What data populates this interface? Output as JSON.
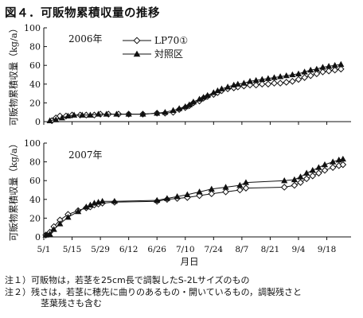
{
  "figure_title": "図４．可販物累積収量の推移",
  "x_axis_label": "月日",
  "notes": [
    "注１）可販物は，若茎を25cm長で調製したS-2Lサイズのもの",
    "注２）残さは，若茎に穂先に曲りのあるもの・開いているもの，調製残さと",
    "茎葉残さも含む"
  ],
  "chart_data": [
    {
      "type": "line",
      "title": "2006年",
      "ylabel": "可販物累積収量（kg/a）",
      "xlabel": "",
      "ylim": [
        0,
        100
      ],
      "yticks": [
        0,
        20,
        40,
        60,
        80,
        100
      ],
      "xlim": [
        "5/1",
        "9/30"
      ],
      "xticks": [
        "5/1",
        "5/15",
        "5/29",
        "6/12",
        "6/26",
        "7/10",
        "7/24",
        "8/7",
        "8/21",
        "9/4",
        "9/18"
      ],
      "grid": false,
      "legend": "top-right",
      "series": [
        {
          "name": "LP70①",
          "marker": "open-diamond",
          "x": [
            "5/5",
            "5/7",
            "5/9",
            "5/12",
            "5/15",
            "5/19",
            "5/22",
            "5/26",
            "5/29",
            "6/2",
            "6/7",
            "6/12",
            "6/19",
            "6/26",
            "6/30",
            "7/4",
            "7/7",
            "7/10",
            "7/12",
            "7/14",
            "7/17",
            "7/19",
            "7/21",
            "7/24",
            "7/26",
            "7/28",
            "7/31",
            "8/3",
            "8/5",
            "8/8",
            "8/11",
            "8/14",
            "8/17",
            "8/20",
            "8/23",
            "8/26",
            "8/29",
            "9/1",
            "9/4",
            "9/7",
            "9/10",
            "9/13",
            "9/16",
            "9/19",
            "9/22",
            "9/25"
          ],
          "values": [
            1,
            4,
            6,
            6,
            7,
            7,
            7,
            7,
            8,
            8,
            8,
            8,
            8,
            9,
            9,
            10,
            13,
            15,
            17,
            20,
            22,
            25,
            27,
            29,
            31,
            33,
            35,
            36,
            37,
            38,
            39,
            39,
            40,
            40,
            41,
            41,
            42,
            43,
            45,
            47,
            49,
            51,
            53,
            54,
            55,
            56
          ]
        },
        {
          "name": "対照区",
          "marker": "filled-triangle",
          "x": [
            "5/4",
            "5/7",
            "5/10",
            "5/13",
            "5/16",
            "5/20",
            "5/24",
            "5/28",
            "6/1",
            "6/6",
            "6/12",
            "6/19",
            "6/26",
            "6/30",
            "7/4",
            "7/7",
            "7/10",
            "7/12",
            "7/14",
            "7/17",
            "7/19",
            "7/21",
            "7/24",
            "7/26",
            "7/28",
            "7/31",
            "8/3",
            "8/5",
            "8/8",
            "8/11",
            "8/14",
            "8/17",
            "8/20",
            "8/23",
            "8/26",
            "8/29",
            "9/1",
            "9/4",
            "9/7",
            "9/10",
            "9/13",
            "9/16",
            "9/19",
            "9/22",
            "9/25"
          ],
          "values": [
            1,
            2,
            4,
            6,
            7,
            7,
            7,
            8,
            8,
            8,
            8,
            8,
            9,
            10,
            12,
            14,
            16,
            18,
            21,
            24,
            26,
            28,
            31,
            33,
            35,
            37,
            39,
            40,
            41,
            43,
            44,
            45,
            46,
            47,
            48,
            49,
            50,
            51,
            53,
            55,
            56,
            58,
            59,
            60,
            61
          ]
        }
      ]
    },
    {
      "type": "line",
      "title": "2007年",
      "ylabel": "可販物累積収量（kg/a）",
      "xlabel": "月日",
      "ylim": [
        0,
        100
      ],
      "yticks": [
        0,
        20,
        40,
        60,
        80,
        100
      ],
      "xlim": [
        "5/1",
        "9/30"
      ],
      "xticks": [
        "5/1",
        "5/15",
        "5/29",
        "6/12",
        "6/26",
        "7/10",
        "7/24",
        "8/7",
        "8/21",
        "9/4",
        "9/18"
      ],
      "grid": false,
      "series": [
        {
          "name": "LP70①",
          "marker": "open-diamond",
          "x": [
            "5/2",
            "5/4",
            "5/6",
            "5/9",
            "5/13",
            "5/18",
            "5/22",
            "5/24",
            "5/26",
            "5/28",
            "5/30",
            "6/5",
            "6/26",
            "7/1",
            "7/6",
            "7/11",
            "7/17",
            "7/23",
            "7/30",
            "8/6",
            "8/9",
            "8/28",
            "9/2",
            "9/5",
            "9/8",
            "9/11",
            "9/14",
            "9/17",
            "9/21",
            "9/24",
            "9/26"
          ],
          "values": [
            2,
            5,
            11,
            18,
            24,
            28,
            31,
            32,
            34,
            35,
            36,
            37,
            38,
            40,
            41,
            42,
            44,
            46,
            48,
            50,
            52,
            53,
            55,
            58,
            62,
            65,
            68,
            71,
            74,
            76,
            77
          ]
        },
        {
          "name": "対照区",
          "marker": "filled-triangle",
          "x": [
            "5/2",
            "5/4",
            "5/6",
            "5/9",
            "5/13",
            "5/18",
            "5/22",
            "5/24",
            "5/26",
            "5/28",
            "5/30",
            "6/5",
            "6/26",
            "7/1",
            "7/6",
            "7/11",
            "7/17",
            "7/23",
            "7/30",
            "8/6",
            "8/9",
            "8/28",
            "9/2",
            "9/5",
            "9/8",
            "9/11",
            "9/14",
            "9/17",
            "9/21",
            "9/24",
            "9/26"
          ],
          "values": [
            2,
            3,
            8,
            14,
            21,
            27,
            32,
            34,
            36,
            37,
            38,
            38,
            39,
            41,
            43,
            45,
            48,
            51,
            53,
            55,
            58,
            60,
            61,
            64,
            68,
            71,
            74,
            77,
            80,
            82,
            83
          ]
        }
      ]
    }
  ]
}
